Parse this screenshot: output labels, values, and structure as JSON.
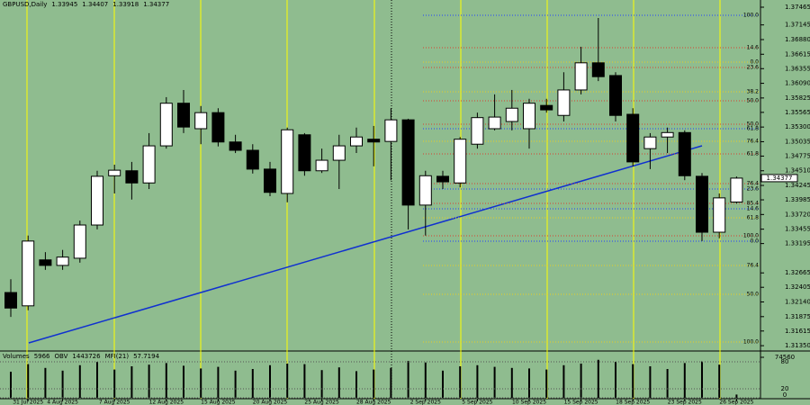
{
  "chart_data": {
    "type": "candlestick",
    "symbol": "GBPUSD,Daily",
    "categories": [
      null,
      "31 Jul 2025",
      null,
      "4 Aug 2025",
      null,
      null,
      "7 Aug 2025",
      null,
      null,
      "12 Aug 2025",
      null,
      null,
      "15 Aug 2025",
      null,
      null,
      "20 Aug 2025",
      null,
      null,
      "25 Aug 2025",
      null,
      null,
      "28 Aug 2025",
      null,
      null,
      "2 Sep 2025",
      null,
      null,
      "5 Sep 2025",
      null,
      null,
      "10 Sep 2025",
      null,
      null,
      "15 Sep 2025",
      null,
      null,
      "18 Sep 2025",
      null,
      null,
      "23 Sep 2025",
      null,
      null,
      "26 Sep 2025"
    ],
    "open": [
      1.3231,
      1.3207,
      1.329,
      1.328,
      1.3293,
      1.3353,
      1.3442,
      1.3451,
      1.3429,
      1.3496,
      1.3573,
      1.3527,
      1.3556,
      1.3503,
      1.3488,
      1.3454,
      1.341,
      1.3516,
      1.3451,
      1.347,
      1.3496,
      1.3508,
      1.3504,
      1.3543,
      1.3389,
      1.3441,
      1.3429,
      1.3499,
      1.3527,
      1.354,
      1.3527,
      1.3569,
      1.3551,
      1.3597,
      1.3646,
      1.3623,
      1.3553,
      1.3491,
      1.3512,
      1.352,
      1.3441,
      1.334,
      1.33945
    ],
    "high": [
      1.3255,
      1.3334,
      1.3304,
      1.3308,
      1.3361,
      1.3451,
      1.3462,
      1.3467,
      1.3519,
      1.3584,
      1.3597,
      1.3568,
      1.3564,
      1.3516,
      1.3499,
      1.3467,
      1.3529,
      1.3519,
      1.3491,
      1.3516,
      1.3529,
      1.3532,
      1.3564,
      1.3545,
      1.3451,
      1.3451,
      1.3512,
      1.3556,
      1.3589,
      1.3597,
      1.3581,
      1.3581,
      1.3629,
      1.3675,
      1.3727,
      1.3629,
      1.3564,
      1.3519,
      1.3529,
      1.3524,
      1.3447,
      1.341,
      1.34407
    ],
    "low": [
      1.3187,
      1.3199,
      1.3272,
      1.3272,
      1.3285,
      1.3345,
      1.341,
      1.3399,
      1.3418,
      1.3491,
      1.3519,
      1.3499,
      1.3495,
      1.3483,
      1.3446,
      1.3405,
      1.3394,
      1.3442,
      1.3447,
      1.3418,
      1.3483,
      1.3459,
      1.3434,
      1.3345,
      1.3334,
      1.3418,
      1.3421,
      1.3491,
      1.3524,
      1.3524,
      1.3491,
      1.3556,
      1.354,
      1.3589,
      1.3613,
      1.354,
      1.3459,
      1.3454,
      1.3483,
      1.3434,
      1.3324,
      1.3329,
      1.33918
    ],
    "close": [
      1.3203,
      1.3324,
      1.328,
      1.3295,
      1.3353,
      1.3441,
      1.3452,
      1.3429,
      1.3496,
      1.3573,
      1.353,
      1.3556,
      1.3503,
      1.3488,
      1.3454,
      1.3412,
      1.3525,
      1.3451,
      1.347,
      1.3496,
      1.3512,
      1.3503,
      1.3543,
      1.3389,
      1.3442,
      1.3431,
      1.3508,
      1.3547,
      1.3548,
      1.3564,
      1.3573,
      1.3561,
      1.3597,
      1.3646,
      1.3621,
      1.3551,
      1.3467,
      1.3512,
      1.352,
      1.3442,
      1.334,
      1.3402,
      1.34377
    ],
    "ylim": [
      1.31254,
      1.37595
    ],
    "yticks": [
      1.37465,
      1.37145,
      {
        "value": 1.3688,
        "label": "1.36880"
      },
      1.36615,
      1.36355,
      {
        "value": 1.3609,
        "label": "1.36090"
      },
      1.35825,
      1.35565,
      {
        "value": 1.353,
        "label": "1.35300"
      },
      1.35035,
      1.34775,
      {
        "value": 1.3451,
        "label": "1.34510"
      },
      1.34245,
      1.33985,
      {
        "value": 1.3372,
        "label": "1.33720"
      },
      1.33455,
      1.33195,
      1.32665,
      1.32405,
      {
        "value": 1.3214,
        "label": "1.32140"
      },
      1.31875,
      1.31615,
      {
        "value": 1.3135,
        "label": "1.31350"
      }
    ],
    "colors": {
      "background": "#8fbc8f",
      "up": "#ffffff",
      "down": "#000000",
      "volume": "#000000"
    },
    "fib_levels": [
      {
        "value": 1.37319,
        "label": "100.0",
        "color": "#2040ff"
      },
      {
        "value": 1.36733,
        "label": "14.6",
        "color": "#d84030"
      },
      {
        "value": 1.36473,
        "label": "0.0",
        "color": "#e8d020"
      },
      {
        "value": 1.36376,
        "label": "23.6",
        "color": "#d84030"
      },
      {
        "value": 1.35937,
        "label": "38.2",
        "color": "#e8d020"
      },
      {
        "value": 1.35774,
        "label": "50.0",
        "color": "#d84030"
      },
      {
        "value": 1.35351,
        "label": "50.0",
        "color": "#d84030"
      },
      {
        "value": 1.3527,
        "label": "61.8",
        "color": "#2040ff"
      },
      {
        "value": 1.35042,
        "label": "76.4",
        "color": "#e8d020"
      },
      {
        "value": 1.34815,
        "label": "61.8",
        "color": "#d84030"
      },
      {
        "value": 1.34278,
        "label": "76.4",
        "color": "#d84030"
      },
      {
        "value": 1.3418,
        "label": "23.6",
        "color": "#2040ff"
      },
      {
        "value": 1.3392,
        "label": "85.4",
        "color": "#d84030"
      },
      {
        "value": 1.33823,
        "label": "14.6",
        "color": "#2040ff"
      },
      {
        "value": 1.3366,
        "label": "61.8",
        "color": "#e8d020"
      },
      {
        "value": 1.33335,
        "label": "100.0",
        "color": "#d84030"
      },
      {
        "value": 1.33237,
        "label": "0.0",
        "color": "#2040ff"
      },
      {
        "value": 1.32798,
        "label": "76.4",
        "color": "#e8d020"
      },
      {
        "value": 1.32278,
        "label": "50.0",
        "color": "#e8d020"
      },
      {
        "value": 1.31416,
        "label": "100.0",
        "color": "#e8d020"
      }
    ],
    "volume": {
      "name": "Volumes",
      "values": [
        48000,
        62000,
        55000,
        50000,
        60000,
        66000,
        52000,
        58000,
        61000,
        64000,
        59000,
        54000,
        57000,
        50000,
        53000,
        60000,
        63000,
        62000,
        51000,
        56000,
        49000,
        52000,
        55000,
        68000,
        65000,
        50000,
        58000,
        60000,
        57000,
        55000,
        54000,
        52000,
        60000,
        63000,
        70000,
        66000,
        62000,
        58000,
        53000,
        64000,
        67000,
        61000,
        5966
      ],
      "ylim": [
        0,
        74560
      ],
      "yticks": [
        74560
      ]
    },
    "obv": {
      "name": "OBV",
      "value": 1443726
    },
    "mfi": {
      "name": "MFI(21)",
      "value": 57.7194,
      "ylim": [
        0,
        100
      ],
      "yticks": [
        80,
        20,
        0
      ]
    }
  }
}
